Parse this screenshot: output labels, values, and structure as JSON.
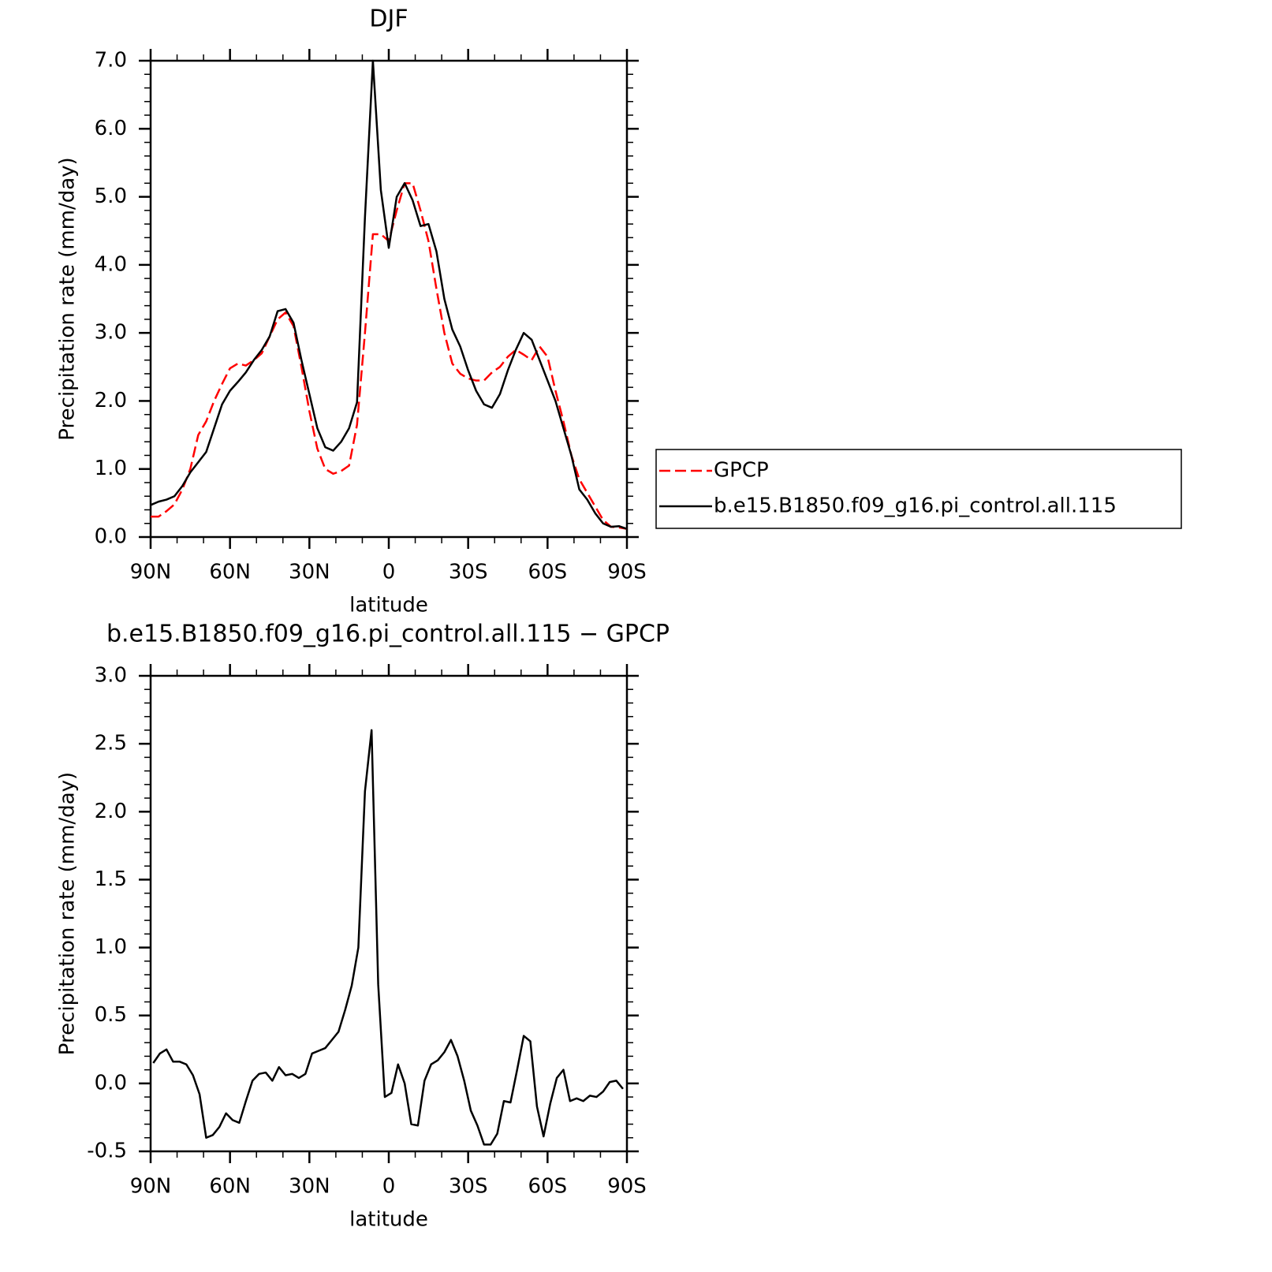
{
  "chart_data": [
    {
      "type": "line",
      "title": "DJF",
      "xlabel": "latitude",
      "ylabel": "Precipitation rate (mm/day)",
      "x": [
        90,
        87,
        84,
        81,
        78,
        75,
        72,
        69,
        66,
        63,
        60,
        57,
        54,
        51,
        48,
        45,
        42,
        39,
        36,
        33,
        30,
        27,
        24,
        21,
        18,
        15,
        12,
        9,
        6,
        3,
        0,
        -3,
        -6,
        -9,
        -12,
        -15,
        -18,
        -21,
        -24,
        -27,
        -30,
        -33,
        -36,
        -39,
        -42,
        -45,
        -48,
        -51,
        -54,
        -57,
        -60,
        -63,
        -66,
        -69,
        -72,
        -75,
        -78,
        -81,
        -84,
        -87,
        -90
      ],
      "series": [
        {
          "name": "GPCP",
          "color": "#ff0000",
          "line_style": "dashed",
          "values": [
            0.3,
            0.3,
            0.38,
            0.48,
            0.7,
            1.0,
            1.5,
            1.7,
            2.0,
            2.25,
            2.48,
            2.55,
            2.52,
            2.6,
            2.7,
            2.95,
            3.2,
            3.3,
            3.1,
            2.5,
            1.85,
            1.3,
            1.0,
            0.93,
            0.97,
            1.05,
            1.65,
            3.0,
            4.45,
            4.45,
            4.35,
            4.8,
            5.2,
            5.2,
            4.8,
            4.35,
            3.65,
            3.0,
            2.55,
            2.4,
            2.33,
            2.3,
            2.3,
            2.42,
            2.5,
            2.65,
            2.75,
            2.68,
            2.6,
            2.8,
            2.65,
            2.15,
            1.7,
            1.2,
            0.85,
            0.65,
            0.45,
            0.25,
            0.15,
            0.14,
            0.12
          ]
        },
        {
          "name": "b.e15.B1850.f09_g16.pi_control.all.115",
          "color": "#000000",
          "line_style": "solid",
          "values": [
            0.47,
            0.52,
            0.55,
            0.6,
            0.75,
            0.95,
            1.1,
            1.25,
            1.6,
            1.95,
            2.15,
            2.28,
            2.42,
            2.6,
            2.75,
            2.95,
            3.32,
            3.35,
            3.15,
            2.6,
            2.1,
            1.6,
            1.32,
            1.27,
            1.4,
            1.6,
            1.98,
            4.7,
            7.0,
            5.1,
            4.25,
            5.0,
            5.2,
            4.95,
            4.57,
            4.6,
            4.2,
            3.5,
            3.05,
            2.8,
            2.45,
            2.15,
            1.95,
            1.9,
            2.1,
            2.45,
            2.75,
            3.0,
            2.9,
            2.6,
            2.3,
            2.0,
            1.6,
            1.2,
            0.7,
            0.55,
            0.35,
            0.2,
            0.15,
            0.16,
            0.12
          ]
        }
      ],
      "xlim": [
        90,
        -90
      ],
      "xticks": [
        {
          "value": 90,
          "label": "90N"
        },
        {
          "value": 60,
          "label": "60N"
        },
        {
          "value": 30,
          "label": "30N"
        },
        0,
        {
          "value": -30,
          "label": "30S"
        },
        {
          "value": -60,
          "label": "60S"
        },
        {
          "value": -90,
          "label": "90S"
        }
      ],
      "ylim": [
        0,
        7
      ],
      "yticks": [
        {
          "value": 0,
          "label": "0.0"
        },
        {
          "value": 1,
          "label": "1.0"
        },
        {
          "value": 2,
          "label": "2.0"
        },
        {
          "value": 3,
          "label": "3.0"
        },
        {
          "value": 4,
          "label": "4.0"
        },
        {
          "value": 5,
          "label": "5.0"
        },
        {
          "value": 6,
          "label": "6.0"
        },
        {
          "value": 7,
          "label": "7.0"
        }
      ],
      "legend": "right"
    },
    {
      "type": "line",
      "title": "b.e15.B1850.f09_g16.pi_control.all.115 − GPCP",
      "xlabel": "latitude",
      "ylabel": "Precipitation rate (mm/day)",
      "x": [
        89,
        86.5,
        84,
        81.5,
        79,
        76.5,
        74,
        71.5,
        69,
        66.5,
        64,
        61.5,
        59,
        56.5,
        54,
        51.5,
        49,
        46.5,
        44,
        41.5,
        39,
        36.5,
        34,
        31.5,
        29,
        26.5,
        24,
        21.5,
        19,
        16.5,
        14,
        11.5,
        9,
        6.5,
        4,
        1.5,
        -1,
        -3.5,
        -6,
        -8.5,
        -11,
        -13.5,
        -16,
        -18.5,
        -21,
        -23.5,
        -26,
        -28.5,
        -31,
        -33.5,
        -36,
        -38.5,
        -41,
        -43.5,
        -46,
        -48.5,
        -51,
        -53.5,
        -56,
        -58.5,
        -61,
        -63.5,
        -66,
        -68.5,
        -71,
        -73.5,
        -76,
        -78.5,
        -81,
        -83.5,
        -86,
        -88.5
      ],
      "series": [
        {
          "color": "#000000",
          "line_style": "solid",
          "values": [
            0.15,
            0.22,
            0.25,
            0.16,
            0.16,
            0.14,
            0.06,
            -0.08,
            -0.4,
            -0.38,
            -0.32,
            -0.22,
            -0.27,
            -0.29,
            -0.13,
            0.02,
            0.07,
            0.08,
            0.02,
            0.12,
            0.06,
            0.07,
            0.04,
            0.07,
            0.22,
            0.24,
            0.26,
            0.32,
            0.38,
            0.54,
            0.72,
            1.0,
            2.15,
            2.6,
            0.73,
            -0.1,
            -0.07,
            0.14,
            0.0,
            -0.3,
            -0.31,
            0.02,
            0.14,
            0.17,
            0.23,
            0.32,
            0.2,
            0.02,
            -0.2,
            -0.31,
            -0.45,
            -0.45,
            -0.37,
            -0.13,
            -0.14,
            0.1,
            0.35,
            0.31,
            -0.17,
            -0.39,
            -0.15,
            0.04,
            0.1,
            -0.13,
            -0.11,
            -0.13,
            -0.09,
            -0.1,
            -0.06,
            0.01,
            0.02,
            -0.04
          ]
        }
      ],
      "xlim": [
        90,
        -90
      ],
      "xticks": [
        {
          "value": 90,
          "label": "90N"
        },
        {
          "value": 60,
          "label": "60N"
        },
        {
          "value": 30,
          "label": "30N"
        },
        0,
        {
          "value": -30,
          "label": "30S"
        },
        {
          "value": -60,
          "label": "60S"
        },
        {
          "value": -90,
          "label": "90S"
        }
      ],
      "ylim": [
        -0.5,
        3
      ],
      "yticks": [
        -0.5,
        {
          "value": 0,
          "label": "0.0"
        },
        0.5,
        {
          "value": 1,
          "label": "1.0"
        },
        1.5,
        {
          "value": 2,
          "label": "2.0"
        },
        2.5,
        {
          "value": 3,
          "label": "3.0"
        }
      ]
    }
  ]
}
